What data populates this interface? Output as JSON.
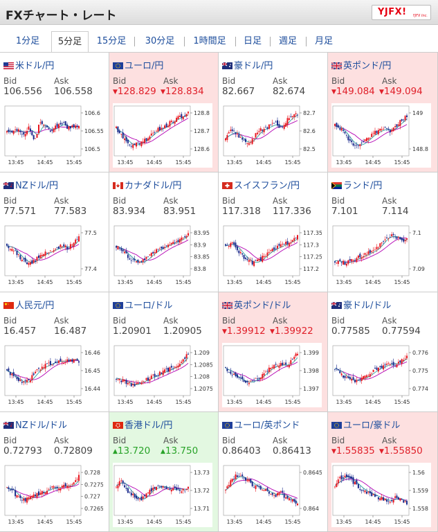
{
  "header": {
    "title": "FXチャート・レート",
    "logo_text": "YJFX!",
    "logo_sub": "YJFX Inc."
  },
  "tabs": [
    {
      "label": "1分足",
      "active": false
    },
    {
      "label": "5分足",
      "active": true
    },
    {
      "label": "15分足",
      "active": false
    },
    {
      "label": "30分足",
      "active": false
    },
    {
      "label": "1時間足",
      "active": false
    },
    {
      "label": "日足",
      "active": false
    },
    {
      "label": "週足",
      "active": false
    },
    {
      "label": "月足",
      "active": false
    }
  ],
  "labels": {
    "bid": "Bid",
    "ask": "Ask"
  },
  "colors": {
    "link": "#1d4d9c",
    "down": "#e0202a",
    "up": "#29a329",
    "down_bg": "#fde0e0",
    "up_bg": "#e3f8e1"
  },
  "pairs": [
    {
      "name": "米ドル/円",
      "flag": "us",
      "bid": "106.556",
      "ask": "106.558",
      "dir": "none",
      "chart": {
        "ticks": [
          "106.6",
          "106.55",
          "106.5"
        ],
        "times": [
          "13:45",
          "14:45",
          "15:45"
        ],
        "trend": [
          0.5,
          0.45,
          0.55,
          0.4,
          0.6,
          0.3,
          0.7,
          0.55,
          0.5,
          0.6,
          0.65,
          0.55,
          0.6,
          0.58
        ]
      }
    },
    {
      "name": "ユーロ/円",
      "flag": "eu",
      "bid": "128.829",
      "ask": "128.834",
      "dir": "down",
      "chart": {
        "ticks": [
          "128.8",
          "128.7",
          "128.6"
        ],
        "times": [
          "13:45",
          "14:45",
          "15:45"
        ],
        "trend": [
          0.55,
          0.4,
          0.25,
          0.2,
          0.25,
          0.3,
          0.4,
          0.5,
          0.55,
          0.6,
          0.7,
          0.75,
          0.8,
          0.85
        ]
      }
    },
    {
      "name": "豪ドル/円",
      "flag": "au",
      "bid": "82.667",
      "ask": "82.674",
      "dir": "none",
      "chart": {
        "ticks": [
          "82.7",
          "82.6",
          "82.5"
        ],
        "times": [
          "13:45",
          "14:45",
          "15:45"
        ],
        "trend": [
          0.35,
          0.5,
          0.45,
          0.3,
          0.25,
          0.35,
          0.5,
          0.55,
          0.6,
          0.65,
          0.55,
          0.7,
          0.8,
          0.85
        ]
      }
    },
    {
      "name": "英ポンド/円",
      "flag": "gb",
      "bid": "149.084",
      "ask": "149.094",
      "dir": "down",
      "chart": {
        "ticks": [
          "149",
          "148.8"
        ],
        "times": [
          "13:45",
          "14:45",
          "15:45"
        ],
        "trend": [
          0.6,
          0.55,
          0.4,
          0.25,
          0.2,
          0.25,
          0.35,
          0.45,
          0.5,
          0.55,
          0.5,
          0.6,
          0.7,
          0.8
        ]
      }
    },
    {
      "name": "NZドル/円",
      "flag": "nz",
      "bid": "77.571",
      "ask": "77.583",
      "dir": "none",
      "chart": {
        "ticks": [
          "77.5",
          "77.4"
        ],
        "times": [
          "13:45",
          "14:45",
          "15:45"
        ],
        "trend": [
          0.6,
          0.55,
          0.4,
          0.3,
          0.25,
          0.3,
          0.4,
          0.45,
          0.5,
          0.55,
          0.6,
          0.55,
          0.65,
          0.8
        ]
      }
    },
    {
      "name": "カナダドル/円",
      "flag": "ca",
      "bid": "83.934",
      "ask": "83.951",
      "dir": "none",
      "chart": {
        "ticks": [
          "83.95",
          "83.9",
          "83.85",
          "83.8"
        ],
        "times": [
          "13:45",
          "14:45",
          "15:45"
        ],
        "trend": [
          0.6,
          0.5,
          0.4,
          0.3,
          0.25,
          0.3,
          0.4,
          0.5,
          0.55,
          0.6,
          0.65,
          0.7,
          0.75,
          0.85
        ]
      }
    },
    {
      "name": "スイスフラン/円",
      "flag": "ch",
      "bid": "117.318",
      "ask": "117.336",
      "dir": "none",
      "chart": {
        "ticks": [
          "117.35",
          "117.3",
          "117.25",
          "117.2"
        ],
        "times": [
          "13:45",
          "14:45",
          "15:45"
        ],
        "trend": [
          0.6,
          0.65,
          0.55,
          0.4,
          0.3,
          0.25,
          0.3,
          0.4,
          0.5,
          0.55,
          0.6,
          0.65,
          0.7,
          0.8
        ]
      }
    },
    {
      "name": "ランド/円",
      "flag": "za",
      "bid": "7.101",
      "ask": "7.114",
      "dir": "none",
      "chart": {
        "ticks": [
          "7.1",
          "7.09"
        ],
        "times": [
          "13:45",
          "14:45",
          "15:45"
        ],
        "trend": [
          0.3,
          0.28,
          0.25,
          0.3,
          0.35,
          0.4,
          0.45,
          0.5,
          0.6,
          0.75,
          0.8,
          0.78,
          0.7,
          0.72
        ]
      }
    },
    {
      "name": "人民元/円",
      "flag": "cn",
      "bid": "16.457",
      "ask": "16.487",
      "dir": "none",
      "chart": {
        "ticks": [
          "16.46",
          "16.45",
          "16.44"
        ],
        "times": [
          "13:45",
          "14:45",
          "15:45"
        ],
        "trend": [
          0.5,
          0.4,
          0.3,
          0.25,
          0.3,
          0.45,
          0.55,
          0.6,
          0.65,
          0.7,
          0.68,
          0.7,
          0.72,
          0.7
        ]
      }
    },
    {
      "name": "ユーロ/ドル",
      "flag": "eu",
      "bid": "1.20901",
      "ask": "1.20905",
      "dir": "none",
      "chart": {
        "ticks": [
          "1.209",
          "1.2085",
          "1.208",
          "1.2075"
        ],
        "times": [
          "13:45",
          "14:45",
          "15:45"
        ],
        "trend": [
          0.35,
          0.3,
          0.25,
          0.2,
          0.25,
          0.3,
          0.35,
          0.4,
          0.45,
          0.5,
          0.55,
          0.6,
          0.7,
          0.85
        ]
      }
    },
    {
      "name": "英ポンド/ドル",
      "flag": "gb",
      "bid": "1.39912",
      "ask": "1.39922",
      "dir": "down",
      "chart": {
        "ticks": [
          "1.399",
          "1.398",
          "1.397"
        ],
        "times": [
          "13:45",
          "14:45",
          "15:45"
        ],
        "trend": [
          0.55,
          0.45,
          0.35,
          0.3,
          0.25,
          0.3,
          0.35,
          0.45,
          0.55,
          0.6,
          0.62,
          0.6,
          0.7,
          0.85
        ]
      }
    },
    {
      "name": "豪ドル/ドル",
      "flag": "au",
      "bid": "0.77585",
      "ask": "0.77594",
      "dir": "none",
      "chart": {
        "ticks": [
          "0.776",
          "0.775",
          "0.774"
        ],
        "times": [
          "13:45",
          "14:45",
          "15:45"
        ],
        "trend": [
          0.55,
          0.45,
          0.35,
          0.3,
          0.3,
          0.35,
          0.4,
          0.5,
          0.55,
          0.6,
          0.65,
          0.62,
          0.7,
          0.8
        ]
      }
    },
    {
      "name": "NZドル/ドル",
      "flag": "nz",
      "bid": "0.72793",
      "ask": "0.72809",
      "dir": "none",
      "chart": {
        "ticks": [
          "0.728",
          "0.7275",
          "0.727",
          "0.7265"
        ],
        "times": [
          "13:45",
          "14:45",
          "15:45"
        ],
        "trend": [
          0.55,
          0.5,
          0.35,
          0.3,
          0.35,
          0.4,
          0.45,
          0.5,
          0.55,
          0.55,
          0.6,
          0.58,
          0.62,
          0.8
        ]
      }
    },
    {
      "name": "香港ドル/円",
      "flag": "hk",
      "bid": "13.720",
      "ask": "13.750",
      "dir": "up",
      "chart": {
        "ticks": [
          "13.73",
          "13.72",
          "13.71"
        ],
        "times": [
          "13:45",
          "14:45",
          "15:45"
        ],
        "trend": [
          0.6,
          0.7,
          0.5,
          0.4,
          0.3,
          0.35,
          0.5,
          0.55,
          0.6,
          0.55,
          0.5,
          0.55,
          0.5,
          0.55
        ]
      }
    },
    {
      "name": "ユーロ/英ポンド",
      "flag": "eu",
      "bid": "0.86403",
      "ask": "0.86413",
      "dir": "none",
      "chart": {
        "ticks": [
          "0.8645",
          "0.864"
        ],
        "times": [
          "13:45",
          "14:45",
          "15:45"
        ],
        "trend": [
          0.5,
          0.7,
          0.8,
          0.75,
          0.7,
          0.6,
          0.55,
          0.5,
          0.45,
          0.4,
          0.45,
          0.35,
          0.3,
          0.2
        ]
      }
    },
    {
      "name": "ユーロ/豪ドル",
      "flag": "eu",
      "bid": "1.55835",
      "ask": "1.55850",
      "dir": "down",
      "chart": {
        "ticks": [
          "1.56",
          "1.559",
          "1.558"
        ],
        "times": [
          "13:45",
          "14:45",
          "15:45"
        ],
        "trend": [
          0.6,
          0.75,
          0.8,
          0.7,
          0.6,
          0.5,
          0.45,
          0.4,
          0.35,
          0.3,
          0.3,
          0.35,
          0.3,
          0.25
        ]
      }
    }
  ]
}
